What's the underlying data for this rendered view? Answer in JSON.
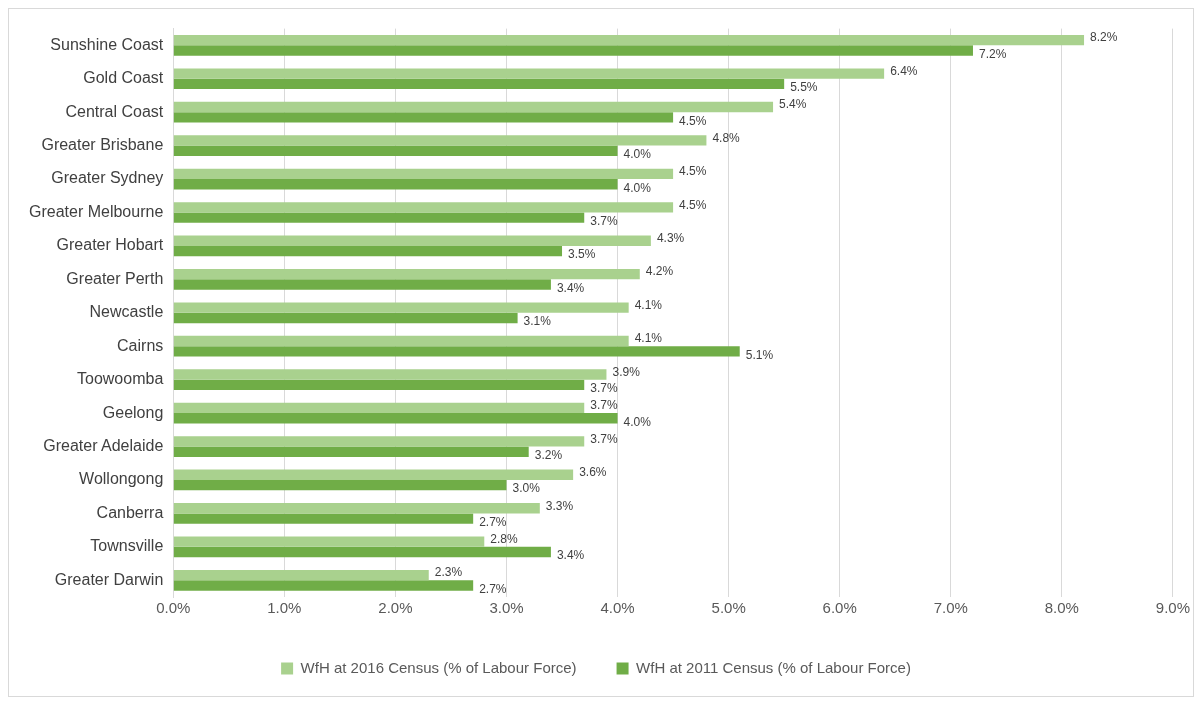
{
  "chart_data": {
    "type": "bar",
    "orientation": "horizontal",
    "categories": [
      "Sunshine Coast",
      "Gold Coast",
      "Central Coast",
      "Greater Brisbane",
      "Greater Sydney",
      "Greater Melbourne",
      "Greater Hobart",
      "Greater Perth",
      "Newcastle",
      "Cairns",
      "Toowoomba",
      "Geelong",
      "Greater Adelaide",
      "Wollongong",
      "Canberra",
      "Townsville",
      "Greater Darwin"
    ],
    "series": [
      {
        "name": "WfH at 2016 Census (% of Labour Force)",
        "color": "#a9d18e",
        "values": [
          8.2,
          6.4,
          5.4,
          4.8,
          4.5,
          4.5,
          4.3,
          4.2,
          4.1,
          4.1,
          3.9,
          3.7,
          3.7,
          3.6,
          3.3,
          2.8,
          2.3
        ],
        "value_labels": [
          "8.2%",
          "6.4%",
          "5.4%",
          "4.8%",
          "4.5%",
          "4.5%",
          "4.3%",
          "4.2%",
          "4.1%",
          "4.1%",
          "3.9%",
          "3.7%",
          "3.7%",
          "3.6%",
          "3.3%",
          "2.8%",
          "2.3%"
        ]
      },
      {
        "name": "WfH at 2011 Census (% of Labour Force)",
        "color": "#70ad47",
        "values": [
          7.2,
          5.5,
          4.5,
          4.0,
          4.0,
          3.7,
          3.5,
          3.4,
          3.1,
          5.1,
          3.7,
          4.0,
          3.2,
          3.0,
          2.7,
          3.4,
          2.7
        ],
        "value_labels": [
          "7.2%",
          "5.5%",
          "4.5%",
          "4.0%",
          "4.0%",
          "3.7%",
          "3.5%",
          "3.4%",
          "3.1%",
          "5.1%",
          "3.7%",
          "4.0%",
          "3.2%",
          "3.0%",
          "2.7%",
          "3.4%",
          "2.7%"
        ]
      }
    ],
    "xlim": [
      0,
      9
    ],
    "xticks": [
      {
        "value": 0,
        "label": "0.0%"
      },
      {
        "value": 1,
        "label": "1.0%"
      },
      {
        "value": 2,
        "label": "2.0%"
      },
      {
        "value": 3,
        "label": "3.0%"
      },
      {
        "value": 4,
        "label": "4.0%"
      },
      {
        "value": 5,
        "label": "5.0%"
      },
      {
        "value": 6,
        "label": "6.0%"
      },
      {
        "value": 7,
        "label": "7.0%"
      },
      {
        "value": 8,
        "label": "8.0%"
      },
      {
        "value": 9,
        "label": "9.0%"
      }
    ],
    "grid": "x",
    "legend": "bottom"
  }
}
